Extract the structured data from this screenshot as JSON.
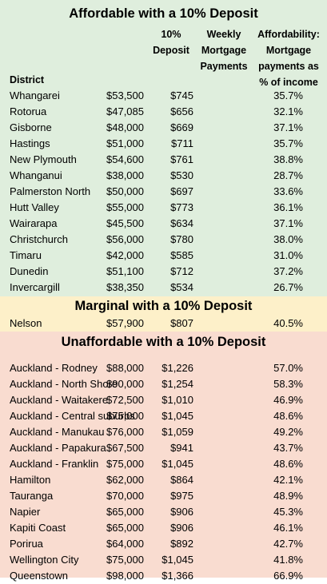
{
  "sections": [
    {
      "title": "Affordable with a 10% Deposit",
      "rows": [
        {
          "district": "Whangarei",
          "deposit": "$53,500",
          "payment": "$745",
          "affordability": "35.7%"
        },
        {
          "district": "Rotorua",
          "deposit": "$47,085",
          "payment": "$656",
          "affordability": "32.1%"
        },
        {
          "district": "Gisborne",
          "deposit": "$48,000",
          "payment": "$669",
          "affordability": "37.1%"
        },
        {
          "district": "Hastings",
          "deposit": "$51,000",
          "payment": "$711",
          "affordability": "35.7%"
        },
        {
          "district": "New Plymouth",
          "deposit": "$54,600",
          "payment": "$761",
          "affordability": "38.8%"
        },
        {
          "district": "Whanganui",
          "deposit": "$38,000",
          "payment": "$530",
          "affordability": "28.7%"
        },
        {
          "district": "Palmerston North",
          "deposit": "$50,000",
          "payment": "$697",
          "affordability": "33.6%"
        },
        {
          "district": "Hutt Valley",
          "deposit": "$55,000",
          "payment": "$773",
          "affordability": "36.1%"
        },
        {
          "district": "Wairarapa",
          "deposit": "$45,500",
          "payment": "$634",
          "affordability": "37.1%"
        },
        {
          "district": "Christchurch",
          "deposit": "$56,000",
          "payment": "$780",
          "affordability": "38.0%"
        },
        {
          "district": "Timaru",
          "deposit": "$42,000",
          "payment": "$585",
          "affordability": "31.0%"
        },
        {
          "district": "Dunedin",
          "deposit": "$51,100",
          "payment": "$712",
          "affordability": "37.2%"
        },
        {
          "district": "Invercargill",
          "deposit": "$38,350",
          "payment": "$534",
          "affordability": "26.7%"
        }
      ]
    },
    {
      "title": "Marginal with a 10% Deposit",
      "rows": [
        {
          "district": "Nelson",
          "deposit": "$57,900",
          "payment": "$807",
          "affordability": "40.5%"
        }
      ]
    },
    {
      "title": "Unaffordable with a 10% Deposit",
      "rows": [
        {
          "district": "Auckland - Rodney",
          "deposit": "$88,000",
          "payment": "$1,226",
          "affordability": "57.0%"
        },
        {
          "district": "Auckland - North Shore",
          "deposit": "$90,000",
          "payment": "$1,254",
          "affordability": "58.3%"
        },
        {
          "district": "Auckland - Waitakere",
          "deposit": "$72,500",
          "payment": "$1,010",
          "affordability": "46.9%"
        },
        {
          "district": "Auckland - Central suburbs",
          "deposit": "$75,000",
          "payment": "$1,045",
          "affordability": "48.6%"
        },
        {
          "district": "Auckland - Manukau",
          "deposit": "$76,000",
          "payment": "$1,059",
          "affordability": "49.2%"
        },
        {
          "district": "Auckland - Papakura",
          "deposit": "$67,500",
          "payment": "$941",
          "affordability": "43.7%"
        },
        {
          "district": "Auckland - Franklin",
          "deposit": "$75,000",
          "payment": "$1,045",
          "affordability": "48.6%"
        },
        {
          "district": "Hamilton",
          "deposit": "$62,000",
          "payment": "$864",
          "affordability": "42.1%"
        },
        {
          "district": "Tauranga",
          "deposit": "$70,000",
          "payment": "$975",
          "affordability": "48.9%"
        },
        {
          "district": "Napier",
          "deposit": "$65,000",
          "payment": "$906",
          "affordability": "45.3%"
        },
        {
          "district": "Kapiti Coast",
          "deposit": "$65,000",
          "payment": "$906",
          "affordability": "46.1%"
        },
        {
          "district": "Porirua",
          "deposit": "$64,000",
          "payment": "$892",
          "affordability": "42.7%"
        },
        {
          "district": "Wellington City",
          "deposit": "$75,000",
          "payment": "$1,045",
          "affordability": "41.8%"
        },
        {
          "district": "Queenstown",
          "deposit": "$98,000",
          "payment": "$1,366",
          "affordability": "66.9%"
        }
      ]
    }
  ],
  "headers": {
    "district": "District",
    "deposit": [
      "10%",
      "Deposit"
    ],
    "payment": [
      "Weekly",
      "Mortgage",
      "Payments"
    ],
    "affordability": [
      "Affordability:",
      "Mortgage",
      "payments as",
      "% of income"
    ]
  },
  "colors": {
    "affordable": "#dfeedd",
    "marginal": "#fdf0c9",
    "unaffordable": "#f9dcd0"
  }
}
